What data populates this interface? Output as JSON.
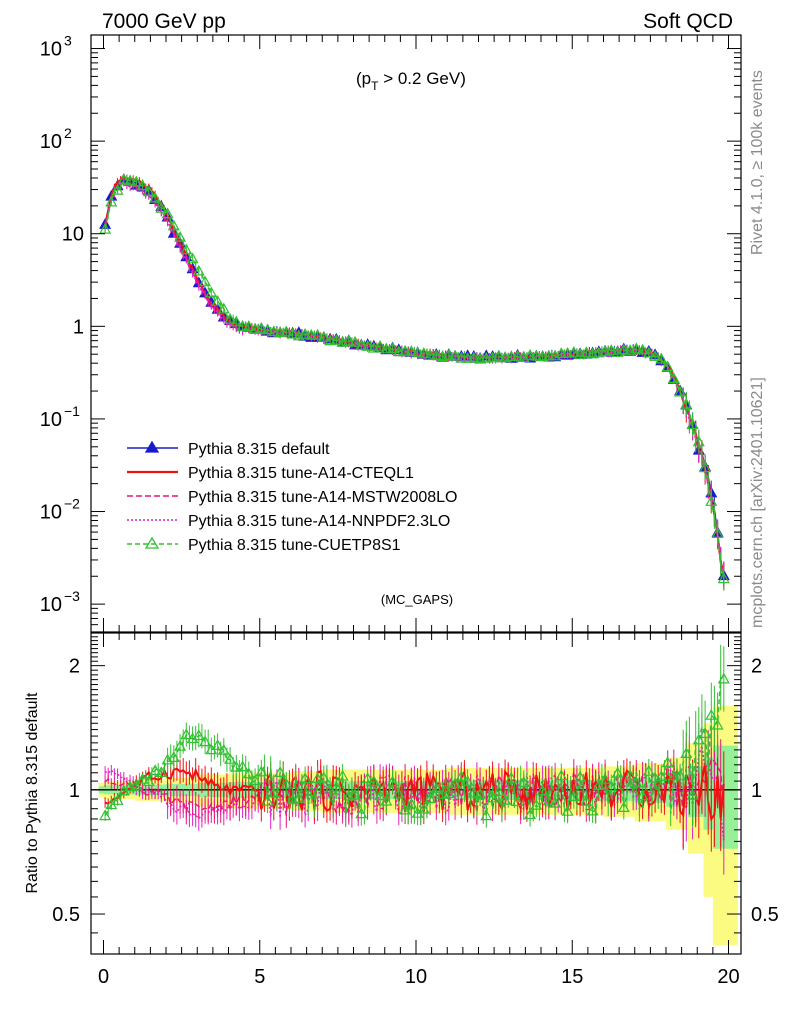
{
  "header": {
    "left": "7000 GeV pp",
    "right": "Soft QCD"
  },
  "side_labels": {
    "rivet": "Rivet 4.1.0, ≥ 100k events",
    "mcplots": "mcplots.cern.ch [arXiv:2401.10621]"
  },
  "colors": {
    "default": "#1a1acc",
    "cteql1": "#ee1111",
    "mstw": "#e8157a",
    "nnpdf": "#e020c8",
    "cuetp8s1": "#30c030",
    "band_yellow": "#fbfb82",
    "band_green": "#96f096"
  },
  "chart_data": {
    "type": "line",
    "main": {
      "annotation_prefix": "(p",
      "annotation_sub": "T",
      "annotation_suffix": " > 0.2 GeV)",
      "watermark": "(MC_GAPS)",
      "yscale": "log",
      "xlim": [
        -0.4,
        20.4
      ],
      "ylim": [
        0.0005,
        1400
      ],
      "ytick_labels": [
        "10",
        "3",
        "10",
        "2",
        "10",
        "1",
        "10",
        "−1",
        "10",
        "−2",
        "10",
        "−3"
      ],
      "ytick_values": [
        1000,
        100,
        10,
        1,
        0.1,
        0.01,
        0.001
      ],
      "curve_keypoints": {
        "x": [
          0.05,
          0.3,
          0.6,
          1.0,
          1.5,
          2.0,
          2.5,
          3.0,
          3.5,
          4.0,
          4.5,
          5.0,
          6.0,
          7.0,
          8.0,
          9.0,
          10.0,
          11.0,
          12.0,
          13.0,
          14.0,
          15.0,
          16.0,
          17.0,
          17.5,
          18.0,
          18.4,
          18.7,
          19.0,
          19.2,
          19.4,
          19.6,
          19.8
        ],
        "y": [
          13,
          30,
          38,
          36,
          28,
          16,
          7,
          3.2,
          1.7,
          1.15,
          0.98,
          0.92,
          0.85,
          0.76,
          0.66,
          0.58,
          0.52,
          0.48,
          0.46,
          0.47,
          0.48,
          0.5,
          0.54,
          0.56,
          0.52,
          0.4,
          0.22,
          0.12,
          0.06,
          0.035,
          0.018,
          0.008,
          0.002
        ]
      },
      "series": [
        {
          "name": "Pythia 8.315 default",
          "key": "default",
          "marker": "filled-triangle",
          "dash": ""
        },
        {
          "name": "Pythia 8.315 tune-A14-CTEQL1",
          "key": "cteql1",
          "marker": "none",
          "dash": ""
        },
        {
          "name": "Pythia 8.315 tune-A14-MSTW2008LO",
          "key": "mstw",
          "marker": "none",
          "dash": "6,3"
        },
        {
          "name": "Pythia 8.315 tune-A14-NNPDF2.3LO",
          "key": "nnpdf",
          "marker": "none",
          "dash": "2,2"
        },
        {
          "name": "Pythia 8.315 tune-CUETP8S1",
          "key": "cuetp8s1",
          "marker": "open-triangle",
          "dash": "5,3"
        }
      ],
      "legend_position": "lower-left"
    },
    "ratio": {
      "ylabel": "Ratio to Pythia 8.315 default",
      "yscale": "log",
      "ylim": [
        0.4,
        2.4
      ],
      "ytick_values": [
        0.5,
        1,
        2
      ],
      "ytick_labels": [
        "0.5",
        "1",
        "2"
      ],
      "xtick_values": [
        0,
        5,
        10,
        15,
        20
      ],
      "xtick_labels": [
        "0",
        "5",
        "10",
        "15",
        "20"
      ],
      "band_yellow": {
        "x": [
          0,
          1,
          2,
          3,
          4,
          5,
          6,
          7,
          8,
          9,
          10,
          11,
          12,
          13,
          14,
          15,
          16,
          17,
          18,
          18.7,
          19.2,
          19.5,
          19.8
        ],
        "half_width": [
          0.04,
          0.05,
          0.06,
          0.07,
          0.09,
          0.1,
          0.1,
          0.11,
          0.12,
          0.12,
          0.12,
          0.12,
          0.13,
          0.13,
          0.13,
          0.13,
          0.13,
          0.14,
          0.16,
          0.2,
          0.3,
          0.45,
          0.6
        ]
      },
      "band_green": {
        "x": [
          0,
          1,
          2,
          3,
          4,
          5,
          6,
          7,
          8,
          9,
          10,
          11,
          12,
          13,
          14,
          15,
          16,
          17,
          18,
          18.7,
          19.2,
          19.5,
          19.8
        ],
        "half_width": [
          0.02,
          0.025,
          0.03,
          0.035,
          0.04,
          0.045,
          0.045,
          0.05,
          0.05,
          0.05,
          0.05,
          0.05,
          0.055,
          0.055,
          0.055,
          0.055,
          0.06,
          0.06,
          0.07,
          0.09,
          0.14,
          0.2,
          0.28
        ]
      },
      "series_keypoints": {
        "cteql1": {
          "x": [
            0.05,
            0.5,
            1.0,
            1.5,
            2.0,
            2.5,
            3.0,
            3.5,
            4.0,
            5.0,
            7.0,
            10.0,
            13.0,
            15.0,
            17.0,
            18.5,
            19.0,
            19.5,
            19.8
          ],
          "y": [
            0.92,
            0.97,
            1.03,
            1.07,
            1.1,
            1.11,
            1.08,
            1.02,
            1.0,
            0.99,
            1.0,
            0.99,
            1.0,
            1.0,
            1.01,
            1.02,
            1.03,
            1.0,
            0.95
          ]
        },
        "mstw": {
          "x": [
            0.05,
            0.5,
            1.0,
            1.5,
            2.0,
            2.5,
            3.0,
            3.5,
            4.0,
            5.0,
            7.0,
            10.0,
            13.0,
            15.0,
            17.0,
            18.5,
            19.0,
            19.5,
            19.8
          ],
          "y": [
            1.05,
            1.04,
            1.02,
            0.99,
            0.95,
            0.92,
            0.9,
            0.91,
            0.93,
            0.96,
            0.98,
            0.98,
            0.99,
            1.0,
            1.0,
            1.02,
            1.05,
            1.1,
            1.0
          ]
        },
        "nnpdf": {
          "x": [
            0.05,
            0.5,
            1.0,
            1.5,
            2.0,
            2.5,
            3.0,
            3.5,
            4.0,
            5.0,
            7.0,
            10.0,
            13.0,
            15.0,
            17.0,
            18.5,
            19.0,
            19.5,
            19.8
          ],
          "y": [
            1.12,
            1.08,
            1.03,
            0.98,
            0.93,
            0.9,
            0.88,
            0.89,
            0.91,
            0.95,
            0.97,
            0.98,
            0.99,
            1.0,
            1.0,
            1.03,
            1.08,
            1.15,
            0.9
          ]
        },
        "cuetp8s1": {
          "x": [
            0.05,
            0.3,
            0.6,
            1.0,
            1.5,
            2.0,
            2.5,
            2.9,
            3.2,
            3.6,
            4.0,
            4.5,
            5.0,
            6.0,
            7.0,
            8.0,
            10.0,
            13.0,
            15.0,
            17.0,
            18.5,
            19.0,
            19.5,
            19.8
          ],
          "y": [
            0.86,
            0.92,
            0.98,
            1.03,
            1.07,
            1.15,
            1.28,
            1.38,
            1.3,
            1.25,
            1.18,
            1.1,
            1.05,
            1.0,
            0.98,
            0.97,
            0.98,
            0.97,
            0.98,
            1.0,
            1.05,
            1.2,
            1.4,
            1.8
          ]
        }
      }
    }
  }
}
